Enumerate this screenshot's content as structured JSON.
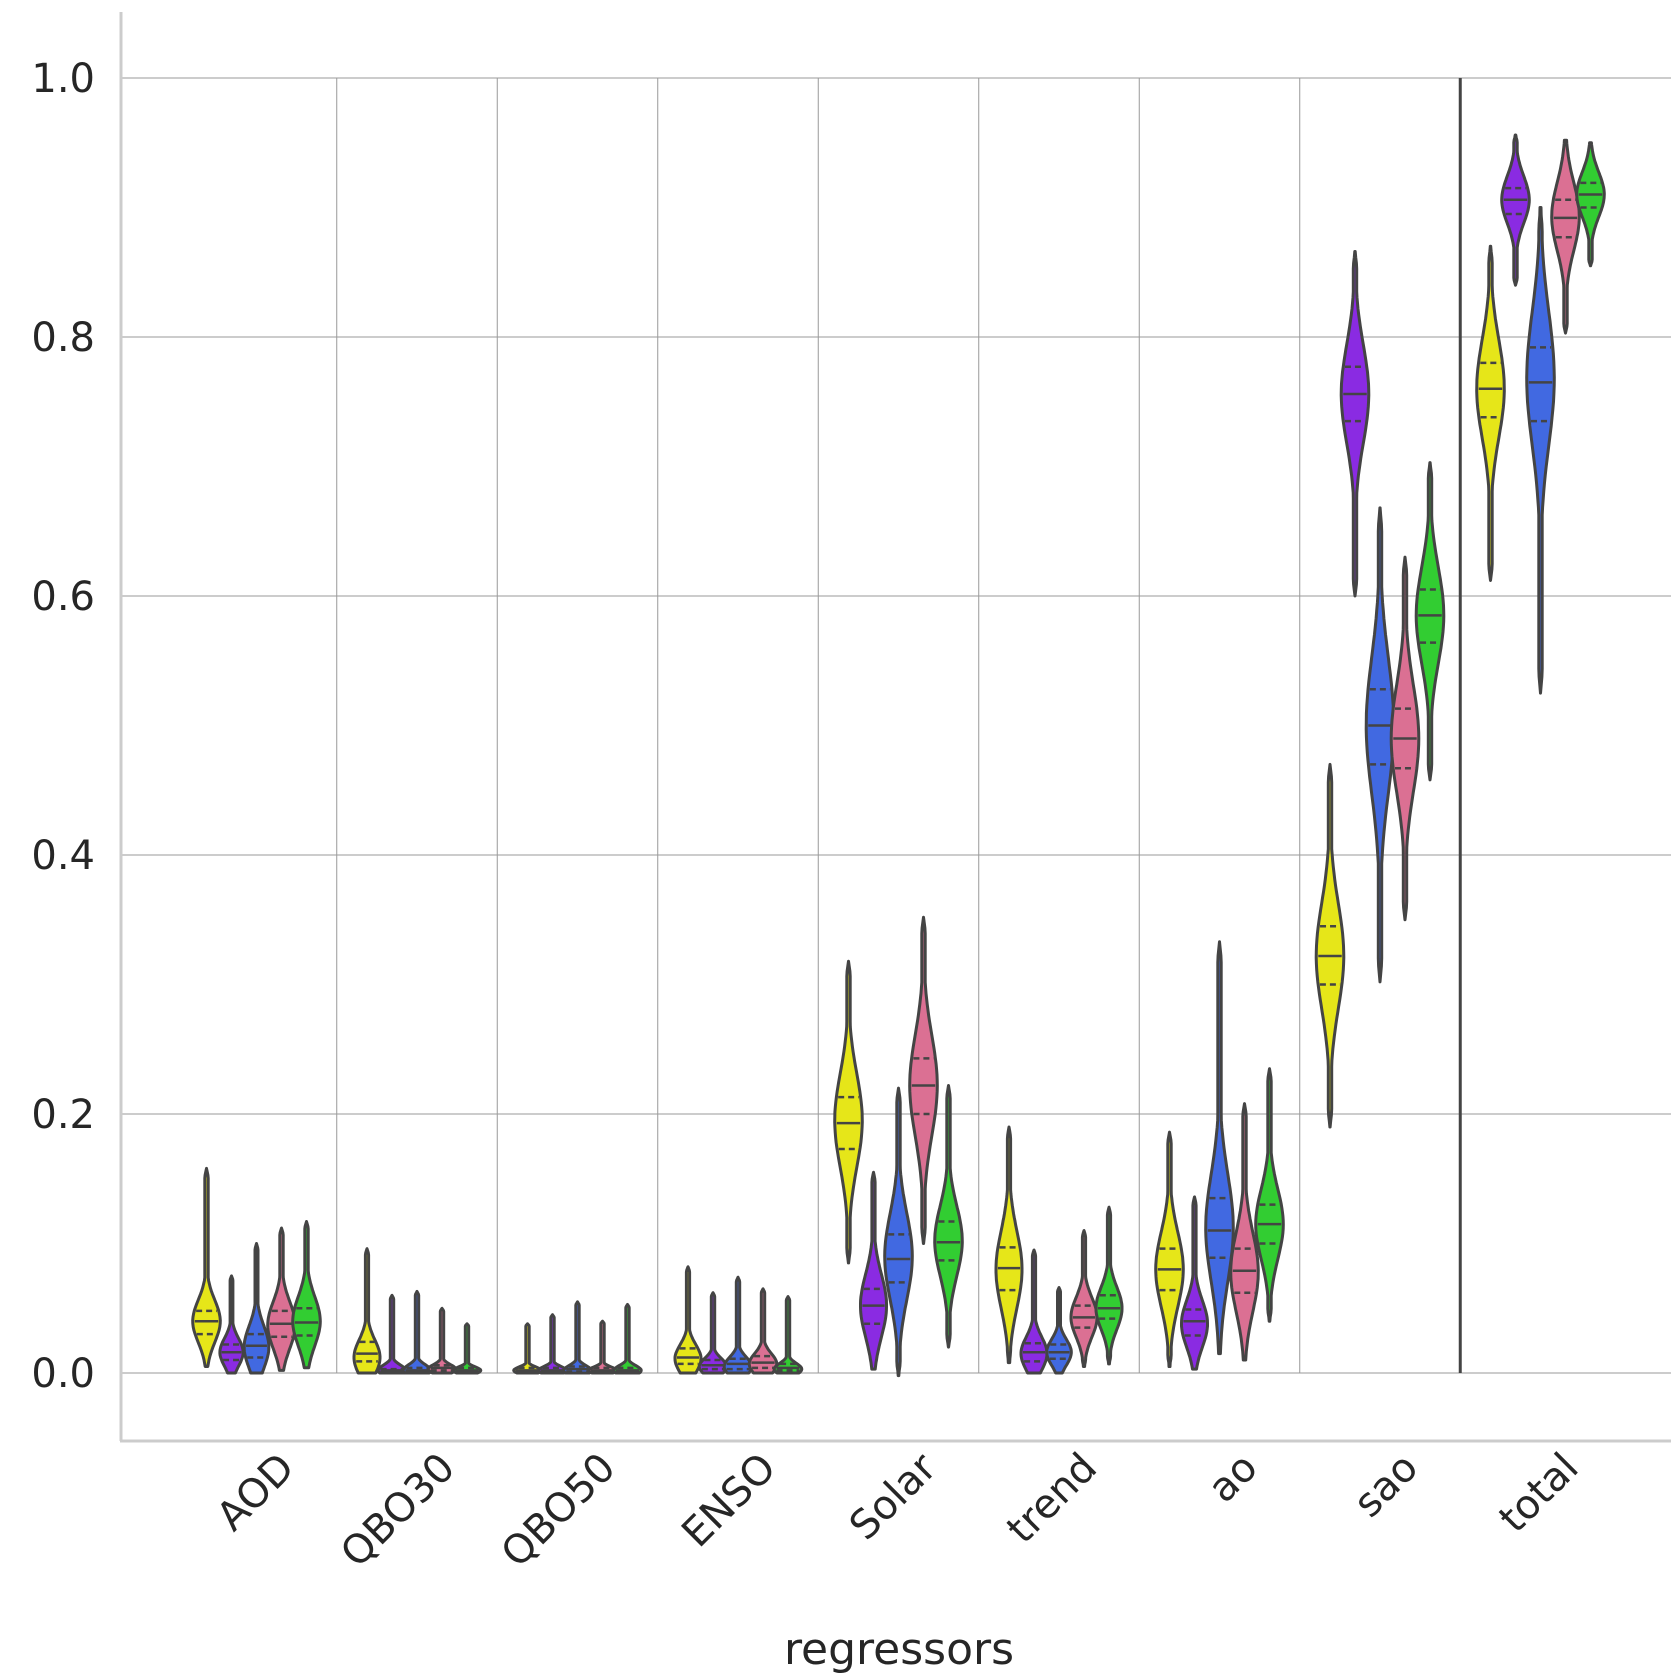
{
  "chart_data": {
    "type": "violin",
    "xlabel": "regressors",
    "ylabel": "",
    "ylim": [
      -0.055,
      1.05
    ],
    "yticks": [
      0.0,
      0.2,
      0.4,
      0.6,
      0.8,
      1.0
    ],
    "ytick_labels": [
      "0.0",
      "0.2",
      "0.4",
      "0.6",
      "0.8",
      "1.0"
    ],
    "categories": [
      "AOD",
      "QBO30",
      "QBO50",
      "ENSO",
      "Solar",
      "trend",
      "ao",
      "sao",
      "total"
    ],
    "grid": true,
    "series_colors": [
      "#e6e619",
      "#8a2be2",
      "#4169e1",
      "#db7093",
      "#32cd32"
    ],
    "outline_color": "#444444",
    "separator_color": "#999999",
    "violins": [
      [
        {
          "min": 0.005,
          "max": 0.158,
          "q1": 0.03,
          "median": 0.04,
          "q3": 0.048,
          "mode": 0.04,
          "width": 0.95
        },
        {
          "min": 0.0,
          "max": 0.075,
          "q1": 0.01,
          "median": 0.016,
          "q3": 0.022,
          "mode": 0.016,
          "width": 0.8
        },
        {
          "min": 0.0,
          "max": 0.1,
          "q1": 0.012,
          "median": 0.021,
          "q3": 0.03,
          "mode": 0.02,
          "width": 0.85
        },
        {
          "min": 0.002,
          "max": 0.112,
          "q1": 0.028,
          "median": 0.038,
          "q3": 0.048,
          "mode": 0.037,
          "width": 0.95
        },
        {
          "min": 0.004,
          "max": 0.117,
          "q1": 0.029,
          "median": 0.039,
          "q3": 0.05,
          "mode": 0.04,
          "width": 0.95
        }
      ],
      [
        {
          "min": 0.0,
          "max": 0.096,
          "q1": 0.009,
          "median": 0.015,
          "q3": 0.024,
          "mode": 0.012,
          "width": 0.9
        },
        {
          "min": 0.0,
          "max": 0.06,
          "q1": 0.001,
          "median": 0.002,
          "q3": 0.003,
          "mode": 0.002,
          "width": 0.95
        },
        {
          "min": 0.0,
          "max": 0.063,
          "q1": 0.001,
          "median": 0.002,
          "q3": 0.004,
          "mode": 0.002,
          "width": 0.95
        },
        {
          "min": 0.0,
          "max": 0.05,
          "q1": 0.002,
          "median": 0.004,
          "q3": 0.006,
          "mode": 0.003,
          "width": 0.95
        },
        {
          "min": 0.0,
          "max": 0.038,
          "q1": 0.001,
          "median": 0.002,
          "q3": 0.004,
          "mode": 0.002,
          "width": 0.95
        }
      ],
      [
        {
          "min": 0.0,
          "max": 0.038,
          "q1": 0.001,
          "median": 0.002,
          "q3": 0.004,
          "mode": 0.002,
          "width": 0.95
        },
        {
          "min": 0.0,
          "max": 0.045,
          "q1": 0.001,
          "median": 0.002,
          "q3": 0.004,
          "mode": 0.002,
          "width": 0.95
        },
        {
          "min": 0.0,
          "max": 0.055,
          "q1": 0.001,
          "median": 0.003,
          "q3": 0.005,
          "mode": 0.002,
          "width": 0.95
        },
        {
          "min": 0.0,
          "max": 0.04,
          "q1": 0.001,
          "median": 0.002,
          "q3": 0.004,
          "mode": 0.002,
          "width": 0.95
        },
        {
          "min": 0.0,
          "max": 0.053,
          "q1": 0.001,
          "median": 0.002,
          "q3": 0.004,
          "mode": 0.002,
          "width": 0.95
        }
      ],
      [
        {
          "min": 0.0,
          "max": 0.082,
          "q1": 0.007,
          "median": 0.012,
          "q3": 0.019,
          "mode": 0.011,
          "width": 0.9
        },
        {
          "min": 0.0,
          "max": 0.062,
          "q1": 0.003,
          "median": 0.006,
          "q3": 0.01,
          "mode": 0.005,
          "width": 0.95
        },
        {
          "min": 0.0,
          "max": 0.074,
          "q1": 0.003,
          "median": 0.007,
          "q3": 0.011,
          "mode": 0.005,
          "width": 0.95
        },
        {
          "min": 0.0,
          "max": 0.065,
          "q1": 0.004,
          "median": 0.008,
          "q3": 0.013,
          "mode": 0.007,
          "width": 0.95
        },
        {
          "min": 0.0,
          "max": 0.059,
          "q1": 0.002,
          "median": 0.004,
          "q3": 0.007,
          "mode": 0.003,
          "width": 0.95
        }
      ],
      [
        {
          "min": 0.085,
          "max": 0.318,
          "q1": 0.173,
          "median": 0.193,
          "q3": 0.213,
          "mode": 0.195,
          "width": 0.95
        },
        {
          "min": 0.003,
          "max": 0.155,
          "q1": 0.038,
          "median": 0.052,
          "q3": 0.065,
          "mode": 0.052,
          "width": 0.9
        },
        {
          "min": -0.002,
          "max": 0.22,
          "q1": 0.07,
          "median": 0.088,
          "q3": 0.107,
          "mode": 0.09,
          "width": 0.95
        },
        {
          "min": 0.1,
          "max": 0.352,
          "q1": 0.2,
          "median": 0.222,
          "q3": 0.243,
          "mode": 0.222,
          "width": 0.95
        },
        {
          "min": 0.02,
          "max": 0.222,
          "q1": 0.087,
          "median": 0.101,
          "q3": 0.117,
          "mode": 0.102,
          "width": 0.95
        }
      ],
      [
        {
          "min": 0.008,
          "max": 0.19,
          "q1": 0.064,
          "median": 0.081,
          "q3": 0.097,
          "mode": 0.08,
          "width": 0.9
        },
        {
          "min": 0.0,
          "max": 0.095,
          "q1": 0.009,
          "median": 0.016,
          "q3": 0.023,
          "mode": 0.015,
          "width": 0.9
        },
        {
          "min": 0.0,
          "max": 0.066,
          "q1": 0.011,
          "median": 0.016,
          "q3": 0.022,
          "mode": 0.016,
          "width": 0.85
        },
        {
          "min": 0.005,
          "max": 0.11,
          "q1": 0.035,
          "median": 0.043,
          "q3": 0.052,
          "mode": 0.043,
          "width": 0.9
        },
        {
          "min": 0.007,
          "max": 0.128,
          "q1": 0.042,
          "median": 0.05,
          "q3": 0.06,
          "mode": 0.05,
          "width": 0.9
        }
      ],
      [
        {
          "min": 0.005,
          "max": 0.186,
          "q1": 0.064,
          "median": 0.08,
          "q3": 0.096,
          "mode": 0.08,
          "width": 0.95
        },
        {
          "min": 0.003,
          "max": 0.136,
          "q1": 0.029,
          "median": 0.04,
          "q3": 0.049,
          "mode": 0.038,
          "width": 0.9
        },
        {
          "min": 0.015,
          "max": 0.333,
          "q1": 0.089,
          "median": 0.11,
          "q3": 0.135,
          "mode": 0.112,
          "width": 0.95
        },
        {
          "min": 0.01,
          "max": 0.208,
          "q1": 0.062,
          "median": 0.079,
          "q3": 0.096,
          "mode": 0.078,
          "width": 0.95
        },
        {
          "min": 0.04,
          "max": 0.235,
          "q1": 0.1,
          "median": 0.115,
          "q3": 0.13,
          "mode": 0.115,
          "width": 0.95
        }
      ],
      [
        {
          "min": 0.19,
          "max": 0.47,
          "q1": 0.3,
          "median": 0.322,
          "q3": 0.345,
          "mode": 0.322,
          "width": 0.95
        },
        {
          "min": 0.6,
          "max": 0.866,
          "q1": 0.735,
          "median": 0.756,
          "q3": 0.777,
          "mode": 0.756,
          "width": 0.95
        },
        {
          "min": 0.302,
          "max": 0.668,
          "q1": 0.47,
          "median": 0.5,
          "q3": 0.528,
          "mode": 0.5,
          "width": 0.95
        },
        {
          "min": 0.35,
          "max": 0.63,
          "q1": 0.467,
          "median": 0.49,
          "q3": 0.513,
          "mode": 0.49,
          "width": 0.95
        },
        {
          "min": 0.458,
          "max": 0.703,
          "q1": 0.564,
          "median": 0.585,
          "q3": 0.605,
          "mode": 0.585,
          "width": 0.95
        }
      ],
      [
        {
          "min": 0.612,
          "max": 0.87,
          "q1": 0.738,
          "median": 0.76,
          "q3": 0.78,
          "mode": 0.76,
          "width": 0.95
        },
        {
          "min": 0.84,
          "max": 0.956,
          "q1": 0.895,
          "median": 0.906,
          "q3": 0.915,
          "mode": 0.906,
          "width": 0.95
        },
        {
          "min": 0.525,
          "max": 0.9,
          "q1": 0.735,
          "median": 0.765,
          "q3": 0.792,
          "mode": 0.768,
          "width": 0.95
        },
        {
          "min": 0.803,
          "max": 0.952,
          "q1": 0.877,
          "median": 0.892,
          "q3": 0.906,
          "mode": 0.893,
          "width": 0.95
        },
        {
          "min": 0.855,
          "max": 0.95,
          "q1": 0.9,
          "median": 0.91,
          "q3": 0.919,
          "mode": 0.91,
          "width": 0.95
        }
      ]
    ]
  }
}
